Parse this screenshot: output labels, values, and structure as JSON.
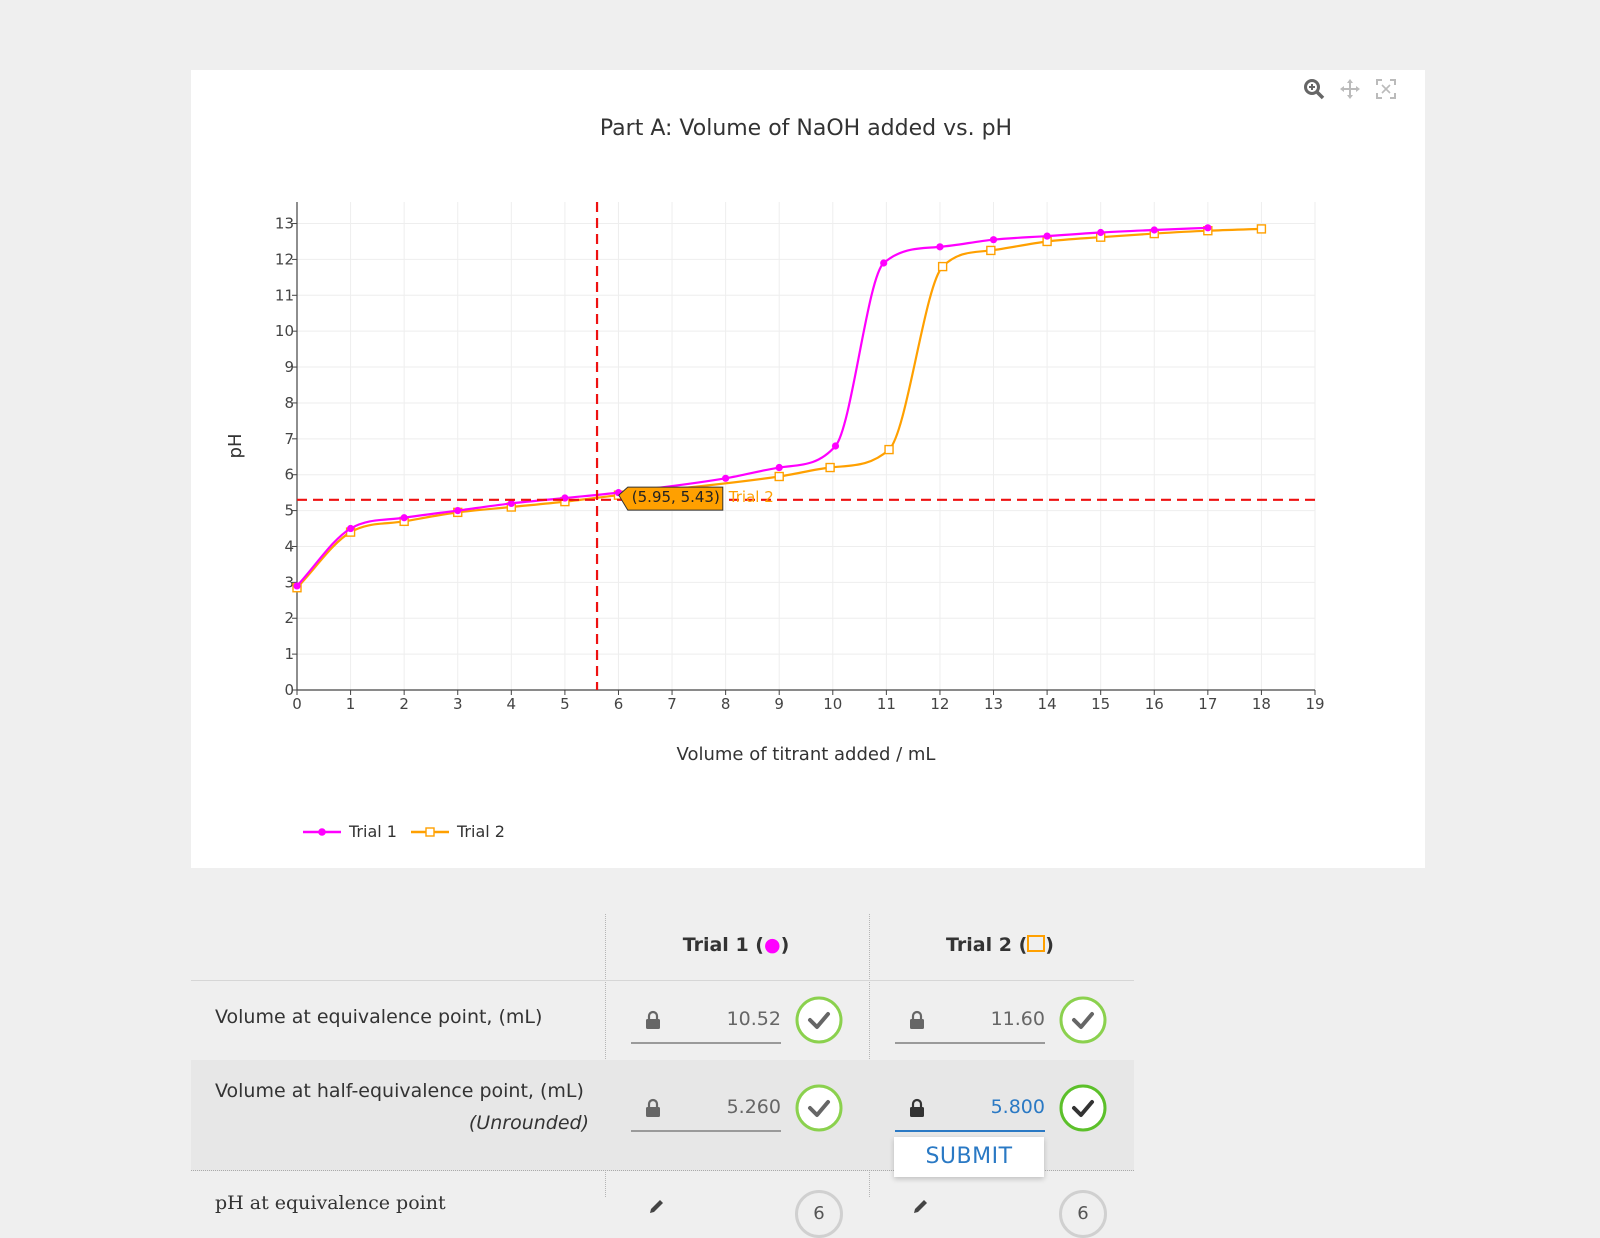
{
  "toolbar": {
    "icons": [
      "zoom-icon",
      "pan-icon",
      "autoscale-icon"
    ]
  },
  "chart_data": {
    "type": "line",
    "title": "Part A: Volume of NaOH added vs. pH",
    "xlabel": "Volume of titrant added / mL",
    "ylabel": "pH",
    "xlim": [
      0,
      19
    ],
    "ylim": [
      0,
      13.6
    ],
    "xticks": [
      "0",
      "1",
      "2",
      "3",
      "4",
      "5",
      "6",
      "7",
      "8",
      "9",
      "10",
      "11",
      "12",
      "13",
      "14",
      "15",
      "16",
      "17",
      "18",
      "19"
    ],
    "yticks": [
      "0",
      "1",
      "2",
      "3",
      "4",
      "5",
      "6",
      "7",
      "8",
      "9",
      "10",
      "11",
      "12",
      "13"
    ],
    "grid": true,
    "legend_position": "bottom-left",
    "series": [
      {
        "name": "Trial 1",
        "color": "#ff00ff",
        "marker": "circle",
        "x": [
          0,
          1,
          2,
          3,
          4,
          5,
          6,
          8,
          9,
          10.05,
          10.95,
          12,
          13,
          14,
          15,
          16,
          17
        ],
        "y": [
          2.9,
          4.5,
          4.8,
          5.0,
          5.2,
          5.35,
          5.5,
          5.9,
          6.2,
          6.8,
          11.9,
          12.35,
          12.55,
          12.65,
          12.75,
          12.82,
          12.88
        ]
      },
      {
        "name": "Trial 2",
        "color": "#ffa000",
        "marker": "square",
        "x": [
          0,
          1,
          2,
          3,
          4,
          5,
          6,
          9,
          9.95,
          11.05,
          12.05,
          12.95,
          14,
          15,
          16,
          17,
          18
        ],
        "y": [
          2.85,
          4.4,
          4.7,
          4.95,
          5.1,
          5.25,
          5.43,
          5.95,
          6.2,
          6.7,
          11.8,
          12.25,
          12.5,
          12.62,
          12.72,
          12.8,
          12.85
        ]
      }
    ],
    "crosshair": {
      "x": 5.6,
      "y": 5.3,
      "color": "#ee1111"
    },
    "hover": {
      "text": "(5.95, 5.43)",
      "series": "Trial 2",
      "x": 5.95,
      "y": 5.43
    }
  },
  "table": {
    "headers": {
      "trial1_label": "Trial 1 (",
      "trial1_suffix": ")",
      "trial2_label": "Trial 2 (",
      "trial2_suffix": ")"
    },
    "rows": [
      {
        "label": "Volume at equivalence point, (mL)",
        "trial1": "10.52",
        "trial2": "11.60"
      },
      {
        "label": "Volume at half-equivalence point, (mL)",
        "sublabel": "(Unrounded)",
        "trial1": "5.260",
        "trial2": "5.800"
      }
    ],
    "row3_partial_label": "pH at equivalence point",
    "row3_badge": "6",
    "submit_label": "SUBMIT"
  }
}
